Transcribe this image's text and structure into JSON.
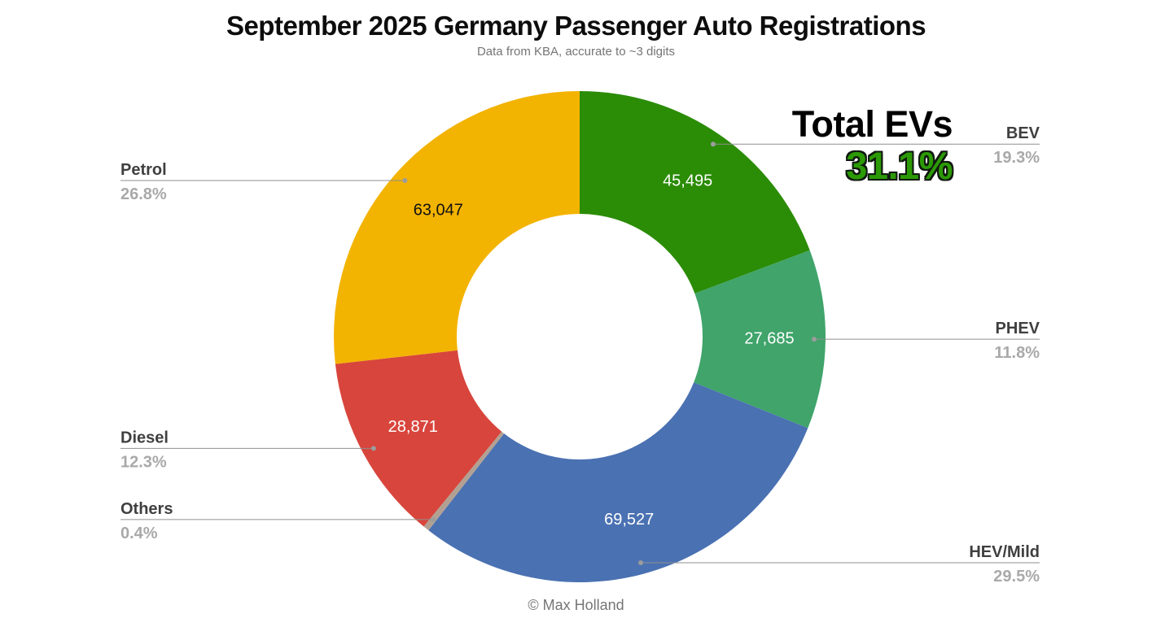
{
  "header": {
    "title": "September 2025 Germany Passenger Auto Registrations",
    "subtitle": "Data from KBA, accurate to ~3 digits"
  },
  "annotation": {
    "label": "Total EVs",
    "value": "31.1%",
    "color": "#2c9a05"
  },
  "footer": {
    "credit": "© Max Holland"
  },
  "chart_data": {
    "type": "pie",
    "variant": "donut",
    "title": "September 2025 Germany Passenger Auto Registrations",
    "subtitle": "Data from KBA, accurate to ~3 digits",
    "legend_position": "callout-labels",
    "start_angle_deg": 0,
    "direction": "clockwise",
    "inner_radius_ratio": 0.5,
    "slices": [
      {
        "label": "BEV",
        "pct": 19.3,
        "pct_label": "19.3%",
        "value": 45495,
        "value_label": "45,495",
        "color": "#2b8c06",
        "value_text_color": "#ffffff",
        "label_side": "right"
      },
      {
        "label": "PHEV",
        "pct": 11.8,
        "pct_label": "11.8%",
        "value": 27685,
        "value_label": "27,685",
        "color": "#40a46b",
        "value_text_color": "#ffffff",
        "label_side": "right"
      },
      {
        "label": "HEV/Mild",
        "pct": 29.5,
        "pct_label": "29.5%",
        "value": 69527,
        "value_label": "69,527",
        "color": "#4a71b2",
        "value_text_color": "#ffffff",
        "label_side": "right"
      },
      {
        "label": "Others",
        "pct": 0.4,
        "pct_label": "0.4%",
        "value": null,
        "value_label": "",
        "color": "#b2a193",
        "value_text_color": "#ffffff",
        "label_side": "left"
      },
      {
        "label": "Diesel",
        "pct": 12.3,
        "pct_label": "12.3%",
        "value": 28871,
        "value_label": "28,871",
        "color": "#d8453c",
        "value_text_color": "#ffffff",
        "label_side": "left"
      },
      {
        "label": "Petrol",
        "pct": 26.8,
        "pct_label": "26.8%",
        "value": 63047,
        "value_label": "63,047",
        "color": "#f3b301",
        "value_text_color": "#111111",
        "label_side": "left"
      }
    ],
    "annotation": {
      "label": "Total EVs",
      "value": "31.1%"
    }
  }
}
